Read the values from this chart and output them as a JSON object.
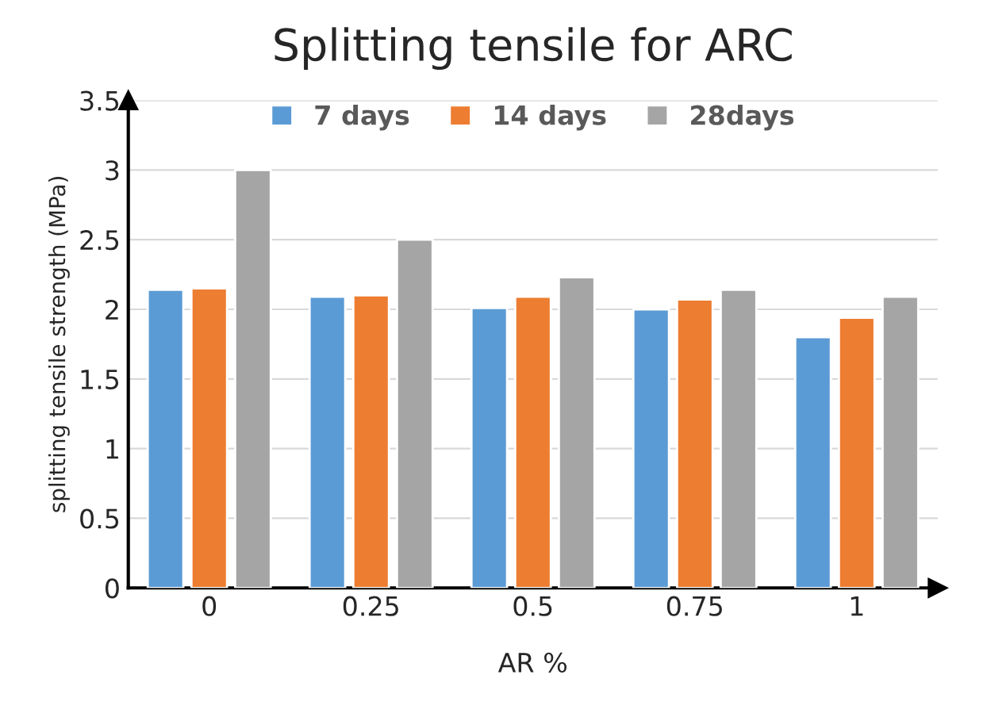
{
  "chart_data": {
    "type": "bar",
    "title": "Splitting tensile for ARC",
    "xlabel": "AR %",
    "ylabel": "splitting tensile strength (MPa)",
    "categories": [
      "0",
      "0.25",
      "0.5",
      "0.75",
      "1"
    ],
    "series": [
      {
        "name": "7 days",
        "color": "#5b9bd5",
        "values": [
          2.14,
          2.09,
          2.01,
          2.0,
          1.8
        ]
      },
      {
        "name": "14 days",
        "color": "#ed7d31",
        "values": [
          2.15,
          2.1,
          2.09,
          2.07,
          1.94
        ]
      },
      {
        "name": "28days",
        "color": "#a5a5a5",
        "values": [
          3.0,
          2.5,
          2.23,
          2.14,
          2.09
        ]
      }
    ],
    "ylim": [
      0,
      3.5
    ],
    "yticks": [
      0,
      0.5,
      1,
      1.5,
      2,
      2.5,
      3,
      3.5
    ],
    "grid": "y",
    "legend": "top"
  }
}
